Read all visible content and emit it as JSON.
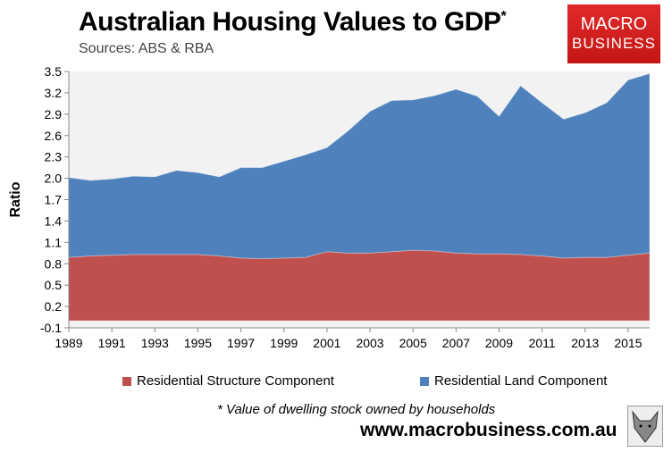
{
  "header": {
    "title": "Australian Housing Values to GDP",
    "title_mark": "*",
    "subtitle": "Sources: ABS & RBA"
  },
  "logo": {
    "line1": "MACRO",
    "line2": "BUSINESS",
    "color": "#d42020"
  },
  "footer": {
    "note": "* Value of dwelling stock owned by households",
    "url": "www.macrobusiness.com.au",
    "mascot": "wolf-icon"
  },
  "chart_data": {
    "type": "area",
    "stacked": true,
    "title": "Australian Housing Values to GDP",
    "xlabel": "",
    "ylabel": "Ratio",
    "ylim": [
      -0.1,
      3.5
    ],
    "yticks": [
      "3.5",
      "3.2",
      "2.9",
      "2.6",
      "2.3",
      "2.0",
      "1.7",
      "1.4",
      "1.1",
      "0.8",
      "0.5",
      "0.2",
      "-0.1"
    ],
    "xticks": [
      "1989",
      "1991",
      "1993",
      "1995",
      "1997",
      "1999",
      "2001",
      "2003",
      "2005",
      "2007",
      "2009",
      "2011",
      "2013",
      "2015"
    ],
    "grid": false,
    "legend_position": "bottom",
    "x": [
      1989,
      1990,
      1991,
      1992,
      1993,
      1994,
      1995,
      1996,
      1997,
      1998,
      1999,
      2000,
      2001,
      2002,
      2003,
      2004,
      2005,
      2006,
      2007,
      2008,
      2009,
      2010,
      2011,
      2012,
      2013,
      2014,
      2015,
      2016
    ],
    "series": [
      {
        "name": "Residential Structure Component",
        "color": "#c0504d",
        "values": [
          0.89,
          0.91,
          0.92,
          0.93,
          0.93,
          0.93,
          0.93,
          0.91,
          0.88,
          0.87,
          0.88,
          0.89,
          0.97,
          0.95,
          0.95,
          0.97,
          0.99,
          0.98,
          0.95,
          0.94,
          0.94,
          0.93,
          0.91,
          0.88,
          0.89,
          0.89,
          0.92,
          0.95
        ]
      },
      {
        "name": "Residential Land Component",
        "color": "#4f81bd",
        "values": [
          1.12,
          1.06,
          1.07,
          1.1,
          1.09,
          1.18,
          1.15,
          1.11,
          1.27,
          1.28,
          1.36,
          1.44,
          1.46,
          1.72,
          1.99,
          2.12,
          2.11,
          2.18,
          2.3,
          2.21,
          1.93,
          2.37,
          2.15,
          1.95,
          2.03,
          2.17,
          2.46,
          2.52
        ]
      }
    ]
  }
}
